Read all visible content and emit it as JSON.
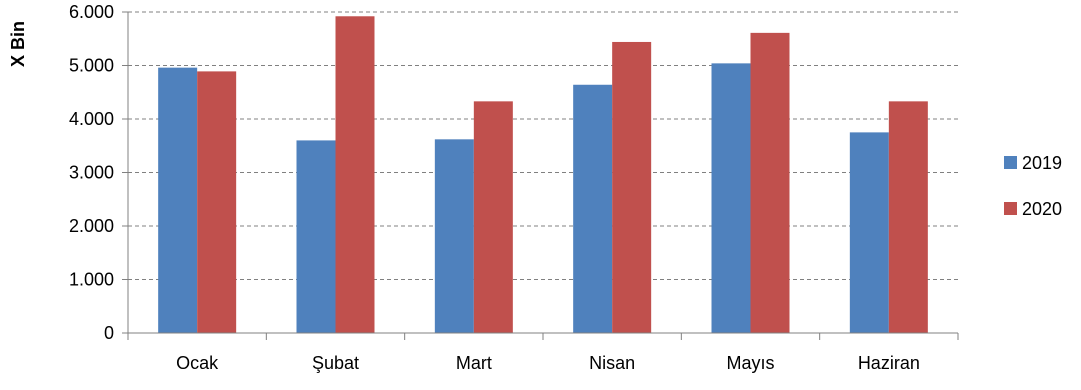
{
  "chart_data": {
    "type": "bar",
    "categories": [
      "Ocak",
      "Şubat",
      "Mart",
      "Nisan",
      "Mayıs",
      "Haziran"
    ],
    "series": [
      {
        "name": "2019",
        "color": "#4F81BD",
        "values": [
          4960,
          3600,
          3620,
          4640,
          5040,
          3750
        ]
      },
      {
        "name": "2020",
        "color": "#C0504D",
        "values": [
          4890,
          5920,
          4330,
          5440,
          5610,
          4330
        ]
      }
    ],
    "ylabel": "X Bin",
    "xlabel": "",
    "ylim": [
      0,
      6000
    ],
    "yticks": [
      0,
      1000,
      2000,
      3000,
      4000,
      5000,
      6000
    ],
    "ytick_labels": [
      "0",
      "1.000",
      "2.000",
      "3.000",
      "4.000",
      "5.000",
      "6.000"
    ],
    "grid": "horizontal dashed",
    "legend_position": "right"
  }
}
